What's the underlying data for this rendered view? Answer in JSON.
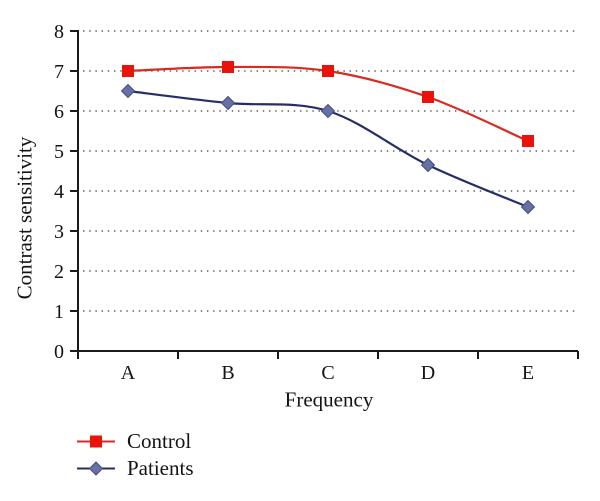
{
  "chart_data": {
    "type": "line",
    "title": "",
    "categories": [
      "A",
      "B",
      "C",
      "D",
      "E"
    ],
    "series": [
      {
        "name": "Control",
        "values": [
          7.0,
          7.1,
          7.0,
          6.35,
          5.25
        ],
        "line_color": "#d92a20",
        "marker": "square",
        "marker_fill": "#ea130c",
        "marker_stroke": "#ea130c"
      },
      {
        "name": "Patients",
        "values": [
          6.5,
          6.2,
          6.0,
          4.65,
          3.6
        ],
        "line_color": "#252e68",
        "marker": "diamond",
        "marker_fill": "#6670a4",
        "marker_stroke": "#454e85"
      }
    ],
    "xlabel": "Frequency",
    "ylabel": "Contrast sensitivity",
    "ylim": [
      0,
      8
    ],
    "yticks": [
      0,
      1,
      2,
      3,
      4,
      5,
      6,
      7,
      8
    ],
    "grid": "horizontal-dotted",
    "smoothed_lines": true,
    "legend_position": "bottom-left"
  },
  "colors": {
    "axis": "#1a1a1a",
    "tick_text": "#141414",
    "gridline": "#5c5c5c",
    "background": "#ffffff"
  }
}
